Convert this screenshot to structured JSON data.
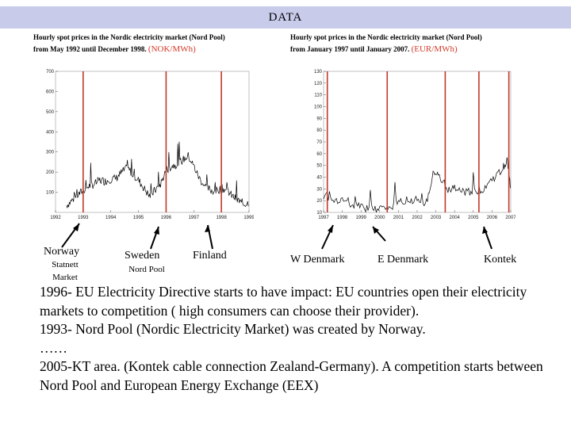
{
  "header": {
    "title": "DATA"
  },
  "left_caption": {
    "line1": "Hourly spot prices in the Nordic electricity market (Nord Pool)",
    "line2": "from May 1992 until December 1998.",
    "unit": "(NOK/MWh)"
  },
  "right_caption": {
    "line1": "Hourly spot prices in the Nordic electricity market (Nord Pool)",
    "line2": "from January 1997 until January 2007.",
    "unit": "(EUR/MWh)"
  },
  "chart_data": [
    {
      "type": "line",
      "xlabel": "",
      "ylabel": "",
      "x_ticks": [
        "1992",
        "1993",
        "1994",
        "1995",
        "1996",
        "1997",
        "1998",
        "1999"
      ],
      "y_ticks": [
        100,
        200,
        300,
        400,
        500,
        600,
        700
      ],
      "ylim": [
        0,
        700
      ],
      "xlim": [
        1992,
        1999
      ],
      "markers": [
        1993,
        1996,
        1998
      ],
      "marker_color": "#c0392b",
      "series_points": [
        [
          1992.4,
          35
        ],
        [
          1992.6,
          60
        ],
        [
          1992.8,
          85
        ],
        [
          1993.0,
          110
        ],
        [
          1993.2,
          130
        ],
        [
          1993.4,
          140
        ],
        [
          1993.6,
          160
        ],
        [
          1993.8,
          155
        ],
        [
          1994.0,
          165
        ],
        [
          1994.2,
          170
        ],
        [
          1994.4,
          200
        ],
        [
          1994.6,
          220
        ],
        [
          1994.8,
          190
        ],
        [
          1995.0,
          160
        ],
        [
          1995.2,
          120
        ],
        [
          1995.4,
          80
        ],
        [
          1995.6,
          110
        ],
        [
          1995.8,
          140
        ],
        [
          1996.0,
          210
        ],
        [
          1996.2,
          230
        ],
        [
          1996.4,
          240
        ],
        [
          1996.6,
          260
        ],
        [
          1996.8,
          280
        ],
        [
          1997.0,
          230
        ],
        [
          1997.2,
          170
        ],
        [
          1997.4,
          130
        ],
        [
          1997.6,
          110
        ],
        [
          1997.8,
          105
        ],
        [
          1998.0,
          120
        ],
        [
          1998.2,
          110
        ],
        [
          1998.4,
          80
        ],
        [
          1998.6,
          60
        ],
        [
          1998.8,
          40
        ],
        [
          1999.0,
          50
        ]
      ]
    },
    {
      "type": "line",
      "xlabel": "",
      "ylabel": "",
      "x_ticks": [
        "1997",
        "1998",
        "1999",
        "2000",
        "2001",
        "2002",
        "2003",
        "2004",
        "2005",
        "2006",
        "2007"
      ],
      "y_ticks": [
        10,
        20,
        30,
        40,
        50,
        60,
        70,
        80,
        90,
        100,
        110,
        120,
        130
      ],
      "ylim": [
        10,
        130
      ],
      "xlim": [
        1997,
        2007
      ],
      "markers": [
        1997.2,
        2000.4,
        2003.5,
        2005.3,
        2006.9
      ],
      "marker_color": "#c0392b",
      "series_points": [
        [
          1997.0,
          25
        ],
        [
          1997.5,
          22
        ],
        [
          1998.0,
          20
        ],
        [
          1998.5,
          16
        ],
        [
          1999.0,
          14
        ],
        [
          1999.5,
          13
        ],
        [
          2000.0,
          14
        ],
        [
          2000.5,
          13
        ],
        [
          2001.0,
          18
        ],
        [
          2001.5,
          22
        ],
        [
          2002.0,
          20
        ],
        [
          2002.5,
          18
        ],
        [
          2002.9,
          45
        ],
        [
          2003.2,
          40
        ],
        [
          2003.6,
          28
        ],
        [
          2004.0,
          30
        ],
        [
          2004.5,
          27
        ],
        [
          2005.0,
          28
        ],
        [
          2005.5,
          30
        ],
        [
          2006.0,
          38
        ],
        [
          2006.5,
          45
        ],
        [
          2006.8,
          55
        ],
        [
          2007.0,
          30
        ]
      ]
    }
  ],
  "labels": {
    "norway": "Norway",
    "statnett": "Statnett",
    "market": "Market",
    "sweden": "Sweden",
    "nordpool": "Nord Pool",
    "finland": "Finland",
    "wdenmark": "W Denmark",
    "edenmark": "E Denmark",
    "kontek": "Kontek"
  },
  "body": {
    "line1": "1996- EU Electricity Directive starts to have impact: EU countries open their electricity markets to competition ( high consumers can choose their provider).",
    "line2": "1993- Nord Pool (Nordic Electricity Market) was created by Norway.",
    "line3": "……",
    "line4": "2005-KT area. (Kontek cable connection Zealand-Germany). A competition starts between Nord Pool and European Energy Exchange (EEX)"
  }
}
